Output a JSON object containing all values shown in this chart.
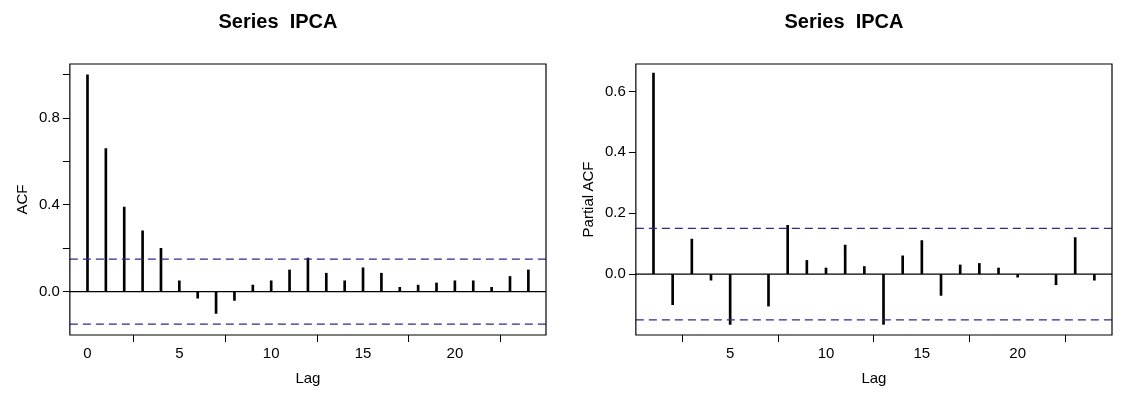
{
  "chart_data": [
    {
      "type": "bar",
      "title": "Series  IPCA",
      "xlabel": "Lag",
      "ylabel": "ACF",
      "x": [
        0,
        1,
        2,
        3,
        4,
        5,
        6,
        7,
        8,
        9,
        10,
        11,
        12,
        13,
        14,
        15,
        16,
        17,
        18,
        19,
        20,
        21,
        22,
        23,
        24
      ],
      "series": [
        {
          "color": "#000000",
          "values": [
            1.0,
            0.66,
            0.39,
            0.28,
            0.2,
            0.05,
            -0.03,
            -0.1,
            -0.04,
            0.03,
            0.05,
            0.1,
            0.155,
            0.085,
            0.05,
            0.11,
            0.085,
            0.02,
            0.03,
            0.04,
            0.05,
            0.05,
            0.02,
            0.07,
            0.1
          ]
        }
      ],
      "xlim": [
        -0.96,
        24.96
      ],
      "xticks": [
        0,
        5,
        10,
        15,
        20
      ],
      "ylim": [
        -0.2,
        1.05
      ],
      "yticks": [
        {
          "value": 0,
          "label": "0.0"
        },
        {
          "value": 0.2,
          "label": null
        },
        {
          "value": 0.4,
          "label": "0.4"
        },
        {
          "value": 0.6,
          "label": null
        },
        {
          "value": 0.8,
          "label": "0.8"
        },
        {
          "value": 1.0,
          "label": null
        }
      ],
      "ref_lines": [
        {
          "axis": "y",
          "value": 0,
          "color": "#000000",
          "line_style": "solid"
        },
        {
          "axis": "y",
          "value": 0.15,
          "color": "#2b2b8c",
          "line_style": "dashed"
        },
        {
          "axis": "y",
          "value": -0.15,
          "color": "#2b2b8c",
          "line_style": "dashed"
        }
      ],
      "grid": false,
      "legend": false
    },
    {
      "type": "bar",
      "title": "Series  IPCA",
      "xlabel": "Lag",
      "ylabel": "Partial ACF",
      "x": [
        1,
        2,
        3,
        4,
        5,
        6,
        7,
        8,
        9,
        10,
        11,
        12,
        13,
        14,
        15,
        16,
        17,
        18,
        19,
        20,
        21,
        22,
        23,
        24
      ],
      "series": [
        {
          "color": "#000000",
          "values": [
            0.66,
            -0.1,
            0.115,
            -0.02,
            -0.165,
            null,
            -0.105,
            0.16,
            0.045,
            0.02,
            0.095,
            0.025,
            -0.165,
            0.06,
            0.11,
            -0.07,
            0.03,
            0.035,
            0.02,
            -0.01,
            null,
            -0.035,
            0.12,
            -0.02
          ]
        }
      ],
      "xlim": [
        0.08,
        24.92
      ],
      "xticks": [
        5,
        10,
        15,
        20
      ],
      "ylim": [
        -0.2,
        0.69
      ],
      "yticks": [
        {
          "value": 0,
          "label": "0.0"
        },
        {
          "value": 0.2,
          "label": "0.2"
        },
        {
          "value": 0.4,
          "label": "0.4"
        },
        {
          "value": 0.6,
          "label": "0.6"
        }
      ],
      "ref_lines": [
        {
          "axis": "y",
          "value": 0,
          "color": "#000000",
          "line_style": "solid"
        },
        {
          "axis": "y",
          "value": 0.15,
          "color": "#2b2b8c",
          "line_style": "dashed"
        },
        {
          "axis": "y",
          "value": -0.15,
          "color": "#2b2b8c",
          "line_style": "dashed"
        }
      ],
      "grid": false,
      "legend": false
    }
  ]
}
